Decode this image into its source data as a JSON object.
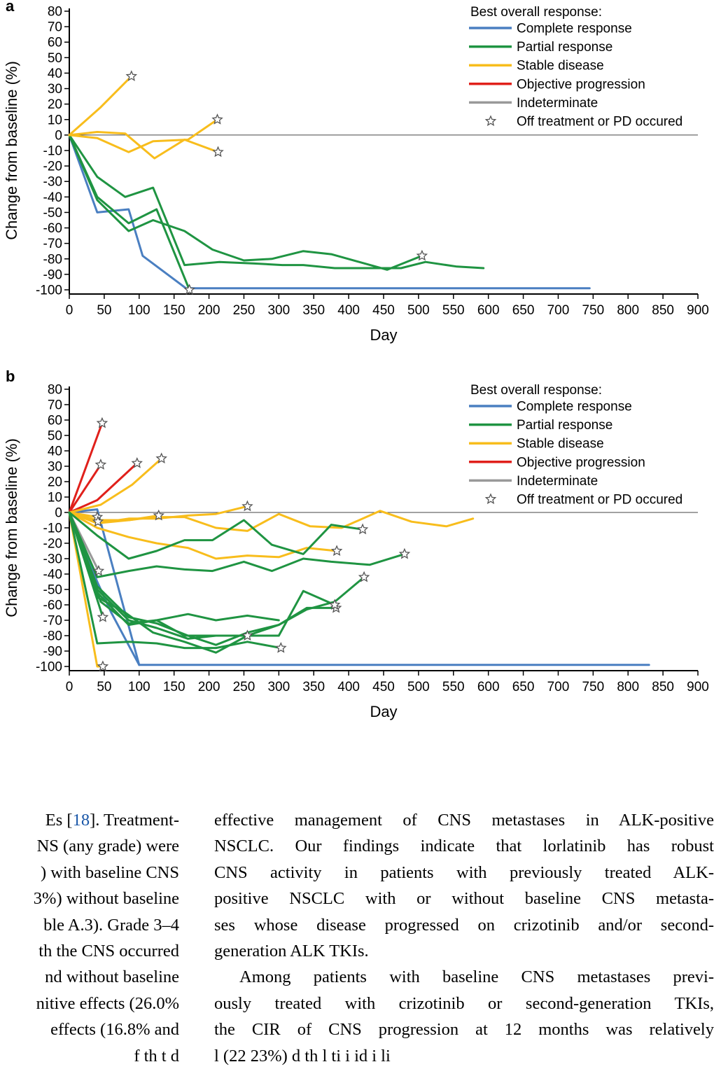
{
  "chart_data": [
    {
      "panel": "a",
      "type": "line",
      "xlabel": "Day",
      "ylabel": "Change from baseline (%)",
      "xlim": [
        0,
        900
      ],
      "ylim": [
        -100,
        80
      ],
      "xticks": [
        0,
        50,
        100,
        150,
        200,
        250,
        300,
        350,
        400,
        450,
        500,
        550,
        600,
        650,
        700,
        750,
        800,
        850,
        900
      ],
      "yticks": [
        80,
        70,
        60,
        50,
        40,
        30,
        20,
        10,
        0,
        -10,
        -20,
        -30,
        -40,
        -50,
        -60,
        -70,
        -80,
        -90,
        -100
      ],
      "zero_line": true,
      "legend": {
        "title": "Best overall response:",
        "placement": "top-right",
        "entries": [
          {
            "label": "Complete response",
            "color": "#4a7fc1",
            "kind": "line"
          },
          {
            "label": "Partial response",
            "color": "#1f9442",
            "kind": "line"
          },
          {
            "label": "Stable disease",
            "color": "#f8bd1c",
            "kind": "line"
          },
          {
            "label": "Objective progression",
            "color": "#e0201b",
            "kind": "line"
          },
          {
            "label": "Indeterminate",
            "color": "#999999",
            "kind": "line"
          },
          {
            "label": "Off treatment or PD occured",
            "color": "#555555",
            "kind": "star"
          }
        ]
      },
      "series": [
        {
          "response": "Complete response",
          "x": [
            0,
            40,
            85,
            105,
            170,
            175,
            745
          ],
          "y": [
            0,
            -50,
            -48,
            -78,
            -100,
            -99,
            -99
          ],
          "end_star": false
        },
        {
          "response": "Partial response",
          "x": [
            0,
            40,
            80,
            120,
            165,
            215,
            265,
            305,
            335,
            380,
            420,
            455,
            475,
            510,
            555,
            593
          ],
          "y": [
            0,
            -27,
            -40,
            -34,
            -84,
            -82,
            -83,
            -84,
            -84,
            -86,
            -86,
            -86,
            -86,
            -82,
            -85,
            -86
          ],
          "end_star": false
        },
        {
          "response": "Partial response",
          "x": [
            0,
            40,
            85,
            125,
            172
          ],
          "y": [
            0,
            -40,
            -57,
            -48,
            -100
          ],
          "end_star": true
        },
        {
          "response": "Partial response",
          "x": [
            0,
            40,
            85,
            120,
            165,
            205,
            250,
            290,
            335,
            375,
            415,
            455,
            505
          ],
          "y": [
            0,
            -42,
            -62,
            -55,
            -62,
            -74,
            -81,
            -80,
            -75,
            -77,
            -82,
            -87,
            -78
          ],
          "end_star": true
        },
        {
          "response": "Stable disease",
          "x": [
            0,
            45,
            89
          ],
          "y": [
            0,
            18,
            38
          ],
          "end_star": true
        },
        {
          "response": "Stable disease",
          "x": [
            0,
            40,
            85,
            120,
            170,
            212
          ],
          "y": [
            0,
            -2,
            -11,
            -4,
            -3,
            10
          ],
          "end_star": true
        },
        {
          "response": "Stable disease",
          "x": [
            0,
            40,
            80,
            122,
            165,
            213
          ],
          "y": [
            0,
            2,
            1,
            -15,
            -3,
            -11
          ],
          "end_star": true
        }
      ]
    },
    {
      "panel": "b",
      "type": "line",
      "xlabel": "Day",
      "ylabel": "Change from baseline (%)",
      "xlim": [
        0,
        900
      ],
      "ylim": [
        -100,
        80
      ],
      "xticks": [
        0,
        50,
        100,
        150,
        200,
        250,
        300,
        350,
        400,
        450,
        500,
        550,
        600,
        650,
        700,
        750,
        800,
        850,
        900
      ],
      "yticks": [
        80,
        70,
        60,
        50,
        40,
        30,
        20,
        10,
        0,
        -10,
        -20,
        -30,
        -40,
        -50,
        -60,
        -70,
        -80,
        -90,
        -100
      ],
      "zero_line": true,
      "legend": {
        "title": "Best overall response:",
        "placement": "top-right",
        "entries": [
          {
            "label": "Complete response",
            "color": "#4a7fc1",
            "kind": "line"
          },
          {
            "label": "Partial response",
            "color": "#1f9442",
            "kind": "line"
          },
          {
            "label": "Stable disease",
            "color": "#f8bd1c",
            "kind": "line"
          },
          {
            "label": "Objective progression",
            "color": "#e0201b",
            "kind": "line"
          },
          {
            "label": "Indeterminate",
            "color": "#999999",
            "kind": "line"
          },
          {
            "label": "Off treatment or PD occured",
            "color": "#555555",
            "kind": "star"
          }
        ]
      },
      "series": [
        {
          "response": "Complete response",
          "x": [
            0,
            40,
            100,
            830
          ],
          "y": [
            0,
            2,
            -99,
            -99
          ],
          "end_star": false
        },
        {
          "response": "Complete response",
          "x": [
            0,
            40,
            60,
            100
          ],
          "y": [
            0,
            -45,
            -65,
            -99
          ],
          "end_star": false
        },
        {
          "response": "Objective progression",
          "x": [
            0,
            47
          ],
          "y": [
            0,
            58
          ],
          "end_star": true
        },
        {
          "response": "Objective progression",
          "x": [
            0,
            45
          ],
          "y": [
            0,
            31
          ],
          "end_star": true
        },
        {
          "response": "Objective progression",
          "x": [
            0,
            40,
            97
          ],
          "y": [
            0,
            8,
            32
          ],
          "end_star": true
        },
        {
          "response": "Indeterminate",
          "x": [
            0,
            42
          ],
          "y": [
            0,
            -38
          ],
          "end_star": true
        },
        {
          "response": "Stable disease",
          "x": [
            0,
            45,
            90,
            132
          ],
          "y": [
            0,
            5,
            18,
            35
          ],
          "end_star": true
        },
        {
          "response": "Stable disease",
          "x": [
            0,
            40
          ],
          "y": [
            0,
            -3
          ],
          "end_star": true
        },
        {
          "response": "Stable disease",
          "x": [
            0,
            41
          ],
          "y": [
            0,
            -6
          ],
          "end_star": true
        },
        {
          "response": "Stable disease",
          "x": [
            0,
            40,
            85,
            128
          ],
          "y": [
            0,
            -7,
            -5,
            -2
          ],
          "end_star": true
        },
        {
          "response": "Stable disease",
          "x": [
            0,
            40,
            85,
            125,
            170,
            210,
            255
          ],
          "y": [
            0,
            -7,
            -4,
            -4,
            -2,
            -1,
            4
          ],
          "end_star": true
        },
        {
          "response": "Stable disease",
          "x": [
            0,
            40,
            85,
            120,
            165,
            210,
            255,
            300,
            345,
            390,
            445,
            490,
            540,
            578
          ],
          "y": [
            0,
            -5,
            -5,
            -3,
            -3,
            -10,
            -12,
            -1,
            -9,
            -10,
            1,
            -6,
            -9,
            -4
          ],
          "end_star": false
        },
        {
          "response": "Stable disease",
          "x": [
            0,
            40,
            85,
            125,
            170,
            210,
            255,
            300,
            340,
            383
          ],
          "y": [
            0,
            -10,
            -16,
            -20,
            -23,
            -30,
            -28,
            -29,
            -23,
            -25
          ],
          "end_star": true
        },
        {
          "response": "Stable disease",
          "x": [
            0,
            40,
            48
          ],
          "y": [
            0,
            -100,
            -100
          ],
          "end_star": true
        },
        {
          "response": "Partial response",
          "x": [
            0,
            40,
            85,
            125,
            165,
            205,
            250,
            290,
            335,
            375,
            420
          ],
          "y": [
            0,
            -15,
            -30,
            -25,
            -18,
            -18,
            -5,
            -21,
            -27,
            -8,
            -11
          ],
          "end_star": true
        },
        {
          "response": "Partial response",
          "x": [
            0,
            40,
            85,
            125,
            165,
            205,
            250,
            290,
            335,
            375,
            430,
            480
          ],
          "y": [
            0,
            -42,
            -38,
            -35,
            -37,
            -38,
            -32,
            -38,
            -30,
            -32,
            -34,
            -27
          ],
          "end_star": true
        },
        {
          "response": "Partial response",
          "x": [
            0,
            48
          ],
          "y": [
            0,
            -68
          ],
          "end_star": true
        },
        {
          "response": "Partial response",
          "x": [
            0,
            45,
            85,
            125,
            170,
            210,
            255,
            300
          ],
          "y": [
            0,
            -58,
            -72,
            -70,
            -66,
            -70,
            -67,
            -70
          ],
          "end_star": false
        },
        {
          "response": "Partial response",
          "x": [
            0,
            40,
            85,
            125,
            170,
            210,
            255,
            300,
            340,
            382
          ],
          "y": [
            0,
            -48,
            -68,
            -72,
            -80,
            -86,
            -78,
            -73,
            -62,
            -62
          ],
          "end_star": true
        },
        {
          "response": "Partial response",
          "x": [
            0,
            40,
            85,
            125,
            170,
            210,
            255,
            300,
            340,
            380,
            422
          ],
          "y": [
            0,
            -50,
            -70,
            -75,
            -82,
            -80,
            -80,
            -73,
            -63,
            -58,
            -42
          ],
          "end_star": true
        },
        {
          "response": "Partial response",
          "x": [
            0,
            40,
            80,
            120,
            165,
            210,
            255
          ],
          "y": [
            0,
            -55,
            -65,
            -78,
            -84,
            -91,
            -80
          ],
          "end_star": true
        },
        {
          "response": "Partial response",
          "x": [
            0,
            40,
            85,
            125,
            165,
            210,
            255,
            300,
            335,
            380
          ],
          "y": [
            0,
            -52,
            -73,
            -70,
            -80,
            -80,
            -80,
            -80,
            -51,
            -60
          ],
          "end_star": true
        },
        {
          "response": "Partial response",
          "x": [
            0,
            40,
            85,
            125,
            165,
            210,
            255,
            303
          ],
          "y": [
            0,
            -85,
            -84,
            -85,
            -88,
            -88,
            -84,
            -88
          ],
          "end_star": true
        }
      ]
    }
  ],
  "panel_labels": [
    "a",
    "b"
  ],
  "text": {
    "left_lines": [
      "Es [18]. Treatment-",
      "NS (any grade) were",
      ") with baseline CNS",
      "3%) without baseline",
      "ble A.3). Grade 3–4",
      "th the CNS occurred",
      "nd without baseline",
      "nitive effects (26.0%",
      " effects (16.8% and",
      "f         th  t  d"
    ],
    "ref_number": "18",
    "right_lines": [
      "effective management of CNS metastases in ALK-positive",
      "NSCLC. Our findings indicate that lorlatinib has robust",
      "CNS activity in patients with previously treated ALK-",
      "positive NSCLC with or without baseline CNS metasta-",
      "ses whose disease progressed on crizotinib and/or second-",
      "generation ALK TKIs.",
      "Among patients with baseline CNS metastases previ-",
      "ously treated with crizotinib or second-generation TKIs,",
      "the CIR of CNS progression at 12 months was relatively",
      "l   (22 23%)  d th      l ti  i  id         i  li"
    ]
  }
}
